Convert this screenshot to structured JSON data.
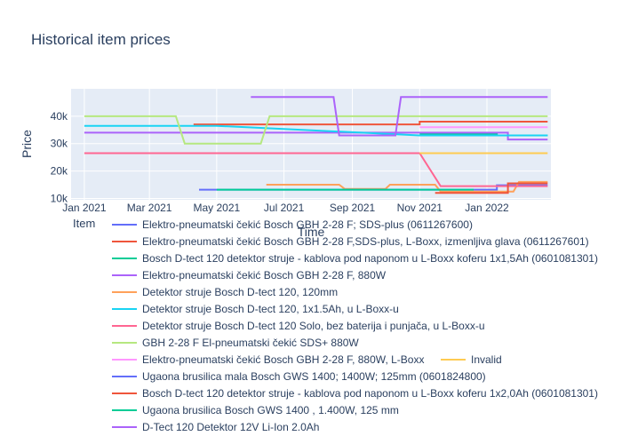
{
  "chart_data": {
    "type": "line",
    "title": "Historical item prices",
    "xlabel": "Time",
    "ylabel": "Price",
    "x_ticks": [
      "Jan 2021",
      "Mar 2021",
      "May 2021",
      "Jul 2021",
      "Sep 2021",
      "Nov 2021",
      "Jan 2022"
    ],
    "y_ticks": [
      "10k",
      "20k",
      "30k",
      "40k"
    ],
    "ylim": [
      9500,
      50000
    ],
    "legend_title": "Item",
    "grid": true,
    "legend_placement": "bottom",
    "series": [
      {
        "name": "Elektro-pneumatski čekić Bosch GBH 2-28 F; SDS-plus (0611267600)",
        "color": "#636efa",
        "points": [
          [
            "2021-11-01",
            13200
          ],
          [
            "2022-01-10",
            13200
          ],
          [
            "2022-01-10",
            14800
          ],
          [
            "2022-02-25",
            14800
          ]
        ]
      },
      {
        "name": "Elektro-pneumatski čekić Bosch GBH 2-28 F,SDS-plus, L-Boxx, izmenljiva glava (0611267601)",
        "color": "#ef553b",
        "points": [
          [
            "2021-04-10",
            37000
          ],
          [
            "2021-11-01",
            37000
          ],
          [
            "2021-11-01",
            38000
          ],
          [
            "2022-02-25",
            38000
          ]
        ]
      },
      {
        "name": "Bosch D-tect 120 detektor struje - kablova pod naponom u L-Boxx koferu 1x1,5Ah (0601081301)",
        "color": "#00cc96",
        "points": [
          [
            "2021-11-01",
            33500
          ],
          [
            "2022-01-10",
            33500
          ],
          [
            "2022-01-10",
            33000
          ],
          [
            "2022-02-25",
            33000
          ]
        ]
      },
      {
        "name": "Elektro-pneumatski čekić Bosch GBH 2-28 F, 880W",
        "color": "#ab63fa",
        "points": [
          [
            "2021-01-01",
            34000
          ],
          [
            "2022-01-20",
            34000
          ],
          [
            "2022-01-20",
            31500
          ],
          [
            "2022-02-25",
            31500
          ]
        ]
      },
      {
        "name": "Detektor struje Bosch D-tect 120, 120mm",
        "color": "#ffa15a",
        "points": [
          [
            "2021-06-15",
            15000
          ],
          [
            "2021-08-20",
            15000
          ],
          [
            "2021-08-25",
            13500
          ],
          [
            "2021-10-01",
            13500
          ],
          [
            "2021-10-05",
            15000
          ],
          [
            "2021-11-15",
            15000
          ],
          [
            "2021-11-20",
            12500
          ],
          [
            "2022-01-25",
            12500
          ],
          [
            "2022-01-30",
            16000
          ],
          [
            "2022-02-25",
            16000
          ]
        ]
      },
      {
        "name": "Detektor struje Bosch D-tect 120, 1x1.5Ah, u L-Boxx-u",
        "color": "#19d3f3",
        "points": [
          [
            "2021-01-01",
            36500
          ],
          [
            "2021-05-01",
            36500
          ],
          [
            "2021-11-01",
            33000
          ],
          [
            "2022-02-25",
            33000
          ]
        ]
      },
      {
        "name": "Detektor struje Bosch D-tect 120 Solo, bez baterija i punjača, u  L-Boxx-u",
        "color": "#ff6692",
        "points": [
          [
            "2021-01-01",
            26500
          ],
          [
            "2021-11-01",
            26500
          ],
          [
            "2021-11-20",
            14500
          ],
          [
            "2022-02-25",
            14500
          ]
        ]
      },
      {
        "name": "GBH 2-28 F El-pneumatski čekić SDS+ 880W",
        "color": "#b6e880",
        "points": [
          [
            "2021-01-01",
            40000
          ],
          [
            "2021-03-25",
            40000
          ],
          [
            "2021-04-02",
            30000
          ],
          [
            "2021-06-10",
            30000
          ],
          [
            "2021-06-18",
            40000
          ],
          [
            "2022-02-25",
            40000
          ]
        ]
      },
      {
        "name": "Elektro-pneumatski čekić Bosch GBH 2-28 F, 880W, L-Boxx",
        "color": "#ff97ff",
        "points": [
          [
            "2021-11-01",
            36000
          ],
          [
            "2022-02-25",
            36000
          ]
        ]
      },
      {
        "name": "Invalid",
        "color": "#fecb52",
        "points": [
          [
            "2021-11-01",
            26500
          ],
          [
            "2022-02-25",
            26500
          ]
        ]
      },
      {
        "name": "Ugaona brusilica mala Bosch GWS 1400; 1400W; 125mm (0601824800)",
        "color": "#636efa",
        "points": [
          [
            "2021-04-15",
            13200
          ],
          [
            "2021-11-01",
            13200
          ]
        ]
      },
      {
        "name": "Bosch D-tect 120 detektor struje - kablova pod naponom u L-Boxx koferu 1x2,0Ah (0601081301)",
        "color": "#ef553b",
        "points": [
          [
            "2021-11-15",
            12000
          ],
          [
            "2022-01-20",
            12000
          ],
          [
            "2022-01-20",
            15500
          ],
          [
            "2022-02-25",
            15500
          ]
        ]
      },
      {
        "name": "Ugaona brusilica Bosch GWS 1400 , 1.400W, 125 mm",
        "color": "#00cc96",
        "points": [
          [
            "2021-05-01",
            13200
          ],
          [
            "2021-12-20",
            13200
          ]
        ]
      },
      {
        "name": "D-Tect 120 Detektor 12V Li-Ion 2.0Ah",
        "color": "#ab63fa",
        "points": [
          [
            "2021-06-01",
            47000
          ],
          [
            "2021-08-15",
            47000
          ],
          [
            "2021-08-20",
            33000
          ],
          [
            "2021-10-10",
            33000
          ],
          [
            "2021-10-15",
            47000
          ],
          [
            "2022-02-25",
            47000
          ]
        ]
      }
    ]
  }
}
